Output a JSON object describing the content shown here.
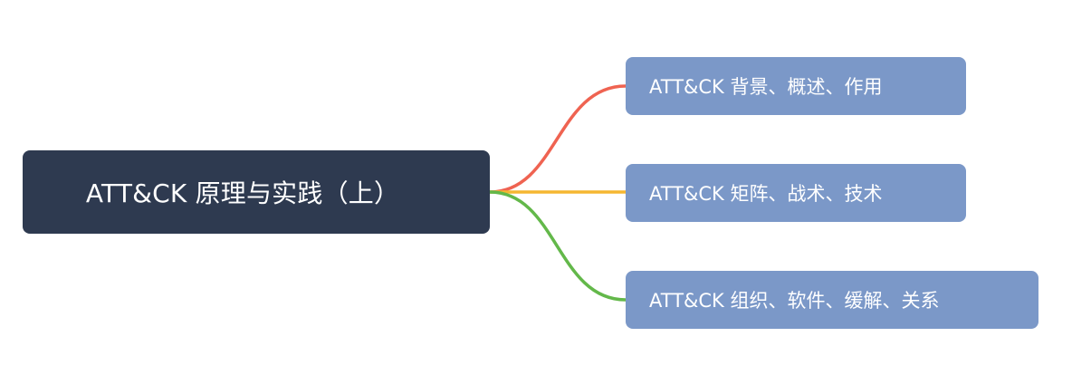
{
  "colors": {
    "background": "#ffffff",
    "root_fill": "#2e3a50",
    "child_fill": "#7b98c8",
    "text_on_node": "#ffffff",
    "branch_1": "#ef6351",
    "branch_2": "#f5b731",
    "branch_3": "#63b84a"
  },
  "mindmap": {
    "root": {
      "label": "ATT&CK 原理与实践（上）"
    },
    "children": [
      {
        "label": "ATT&CK 背景、概述、作用"
      },
      {
        "label": "ATT&CK 矩阵、战术、技术"
      },
      {
        "label": "ATT&CK 组织、软件、缓解、关系"
      }
    ]
  }
}
